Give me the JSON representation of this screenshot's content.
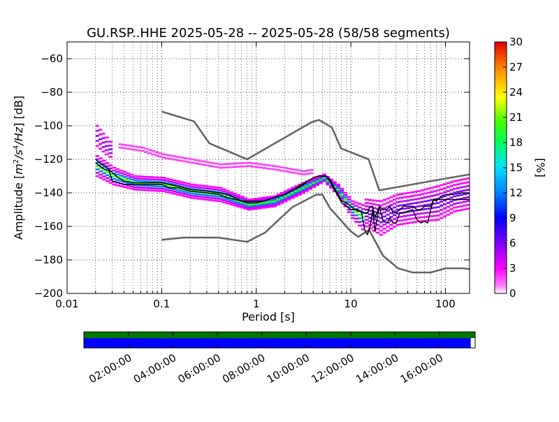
{
  "chart_data": {
    "type": "heatmap",
    "title": "GU.RSP..HHE   2025-05-28 -- 2025-05-28  (58/58 segments)",
    "xlabel": "Period [s]",
    "ylabel": "Amplitude [m²/s⁴/Hz] [dB]",
    "ylabel_parts": {
      "pre": "Amplitude [",
      "m": "m",
      "e2": "2",
      "slash1": "/s",
      "e4": "4",
      "slash2": "/Hz",
      "post": "] [dB]"
    },
    "x_scale": "log",
    "xlim": [
      0.01,
      180
    ],
    "ylim": [
      -200,
      -50
    ],
    "x_ticks": [
      0.01,
      0.1,
      1,
      10,
      100
    ],
    "x_tick_labels": [
      "0.01",
      "0.1",
      "1",
      "10",
      "100"
    ],
    "y_ticks": [
      -200,
      -180,
      -160,
      -140,
      -120,
      -100,
      -80,
      -60
    ],
    "y_tick_labels": [
      "−200",
      "−180",
      "−160",
      "−140",
      "−120",
      "−100",
      "−80",
      "−60"
    ],
    "grid": true,
    "colorbar": {
      "label": "[%]",
      "range": [
        0,
        30
      ],
      "ticks": [
        0,
        3,
        6,
        9,
        12,
        15,
        18,
        21,
        24,
        27,
        30
      ],
      "tick_labels": [
        "0",
        "3",
        "6",
        "9",
        "12",
        "15",
        "18",
        "21",
        "24",
        "27",
        "30"
      ]
    },
    "series": [
      {
        "role": "high noise model",
        "color": "#666666",
        "x": [
          0.1,
          0.22,
          0.32,
          0.8,
          3.8,
          4.6,
          6.3,
          7.9,
          15.4,
          20,
          100,
          180
        ],
        "y": [
          -91.5,
          -97.4,
          -110.5,
          -120,
          -98,
          -96.5,
          -101,
          -113.5,
          -120,
          -138.5,
          -131.5,
          -129
        ]
      },
      {
        "role": "low noise model",
        "color": "#666666",
        "x": [
          0.1,
          0.17,
          0.4,
          0.8,
          1.24,
          2.4,
          4.3,
          5,
          6,
          10,
          12,
          15.6,
          21.9,
          31.6,
          45,
          70,
          101,
          154,
          180
        ],
        "y": [
          -168,
          -166.7,
          -166.7,
          -169.2,
          -163.7,
          -148.6,
          -141.1,
          -141.1,
          -149,
          -163,
          -166.2,
          -162.1,
          -177.5,
          -185,
          -187.5,
          -187.5,
          -185,
          -185,
          -185.5
        ]
      },
      {
        "role": "mode",
        "color": "#000000",
        "x": [
          0.02,
          0.022,
          0.025,
          0.028,
          0.03,
          0.035,
          0.04,
          0.05,
          0.06,
          0.07,
          0.08,
          0.1,
          0.12,
          0.15,
          0.2,
          0.3,
          0.4,
          0.5,
          0.6,
          0.7,
          0.8,
          1,
          1.2,
          1.5,
          2,
          2.5,
          3,
          3.5,
          4,
          4.5,
          5,
          5.5,
          6,
          7,
          8,
          9,
          10,
          11,
          12,
          13,
          14,
          15,
          16,
          17,
          18,
          20,
          22,
          24,
          26,
          28,
          30,
          33,
          36,
          40,
          45,
          50,
          55,
          60,
          65,
          70,
          75,
          80,
          90,
          100,
          110,
          120,
          150,
          180
        ],
        "y": [
          -122,
          -124,
          -126,
          -127,
          -133,
          -134,
          -135,
          -135,
          -135,
          -135,
          -135,
          -135,
          -137,
          -137,
          -139,
          -140,
          -141,
          -143,
          -144,
          -145,
          -145,
          -145,
          -145,
          -143,
          -141,
          -138,
          -136,
          -133,
          -131,
          -130,
          -130,
          -130,
          -133,
          -140,
          -146,
          -148,
          -150,
          -150,
          -151,
          -151,
          -152,
          -152,
          -148,
          -148,
          -155,
          -148,
          -150,
          -150,
          -148,
          -152,
          -152,
          -150,
          -148,
          -148,
          -148,
          -150,
          -150,
          -148,
          -148,
          -148,
          -144,
          -144,
          -144,
          -144,
          -144,
          -144,
          -144,
          -144
        ]
      },
      {
        "role": "mean",
        "color": "#000000",
        "x": [
          0.02,
          0.022,
          0.025,
          0.028,
          0.03,
          0.035,
          0.04,
          0.05,
          0.06,
          0.07,
          0.08,
          0.1,
          0.12,
          0.15,
          0.2,
          0.3,
          0.4,
          0.5,
          0.6,
          0.7,
          0.8,
          1,
          1.2,
          1.5,
          2,
          2.5,
          3,
          3.5,
          4,
          4.5,
          5,
          5.5,
          6,
          7,
          8,
          9,
          10,
          11,
          12,
          13,
          14,
          15,
          16,
          17,
          18,
          20,
          22,
          24,
          26,
          28,
          30,
          33,
          36,
          40,
          45,
          50,
          55,
          60,
          65,
          70,
          75,
          80,
          90,
          100,
          110,
          120,
          150,
          180
        ],
        "y": [
          -120,
          -122,
          -124,
          -126,
          -128,
          -131,
          -133,
          -134,
          -134,
          -134,
          -134,
          -134,
          -135,
          -136,
          -138,
          -139,
          -140,
          -141,
          -143,
          -145,
          -146,
          -146,
          -145,
          -143,
          -141,
          -138,
          -135,
          -133,
          -131,
          -130,
          -130,
          -130,
          -132,
          -139,
          -145,
          -146,
          -148,
          -150,
          -150,
          -152,
          -162,
          -165,
          -160,
          -150,
          -163,
          -148,
          -157,
          -158,
          -155,
          -158,
          -158,
          -152,
          -152,
          -151,
          -150,
          -156,
          -158,
          -157,
          -158,
          -150,
          -144,
          -145,
          -142,
          -141,
          -141,
          -141,
          -140,
          -140
        ]
      },
      {
        "role": "PDF density (cyan/green core)",
        "color": "#00d0d0",
        "x": [
          0.02,
          0.03,
          0.05,
          0.1,
          0.2,
          0.4,
          0.8,
          1.5,
          3,
          5,
          7,
          10,
          14
        ],
        "y": [
          -124,
          -130,
          -134,
          -135,
          -139,
          -141,
          -147,
          -145,
          -137,
          -131,
          -138,
          -150,
          -156
        ]
      }
    ],
    "pdf_density_percent_range": [
      0,
      30
    ],
    "time_axis": {
      "ticks": [
        "02:00:00",
        "04:00:00",
        "06:00:00",
        "08:00:00",
        "10:00:00",
        "12:00:00",
        "14:00:00",
        "16:00:00"
      ],
      "tick_hours": [
        2,
        4,
        6,
        8,
        10,
        12,
        14,
        16
      ],
      "range_hours": [
        0,
        17.6
      ],
      "coverage": [
        {
          "color": "#007700",
          "start_h": 0,
          "end_h": 17.6
        },
        {
          "color": "#0000ff",
          "start_h": 0,
          "end_h": 17.4
        }
      ]
    }
  }
}
